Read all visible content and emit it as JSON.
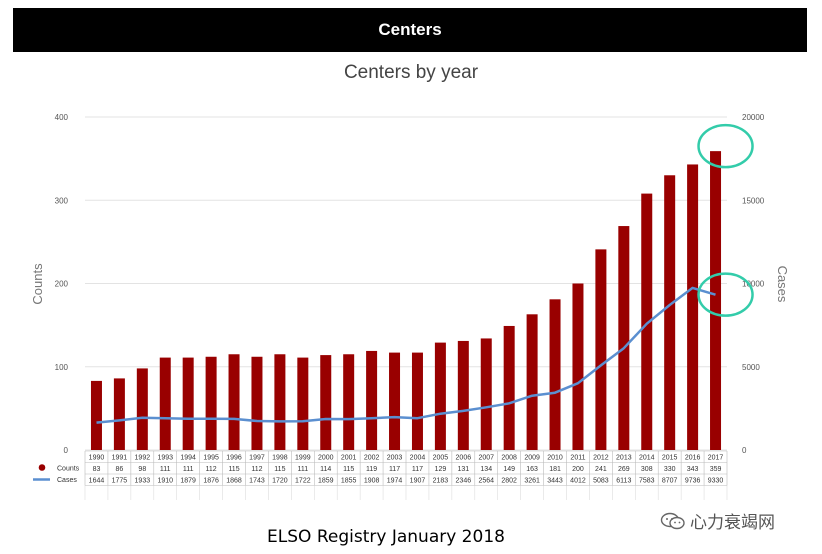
{
  "header": {
    "title": "Centers"
  },
  "footer": {
    "text": "ELSO Registry January  2018"
  },
  "watermark": {
    "text": "心力衰竭网",
    "icon": "wechat-icon"
  },
  "colors": {
    "bar": "#990000",
    "line": "#5b8fd0",
    "highlight": "#33ccaa"
  },
  "chart_data": {
    "type": "bar",
    "title": "Centers by year",
    "ylabel": "Counts",
    "y2label": "Cases",
    "ylim": [
      0,
      400
    ],
    "y2lim": [
      0,
      20000
    ],
    "yticks": [
      "0",
      "100",
      "200",
      "300",
      "400"
    ],
    "y2ticks": [
      "0",
      "5000",
      "10000",
      "15000",
      "20000"
    ],
    "categories": [
      "1990",
      "1991",
      "1992",
      "1993",
      "1994",
      "1995",
      "1996",
      "1997",
      "1998",
      "1999",
      "2000",
      "2001",
      "2002",
      "2003",
      "2004",
      "2005",
      "2006",
      "2007",
      "2008",
      "2009",
      "2010",
      "2011",
      "2012",
      "2013",
      "2014",
      "2015",
      "2016",
      "2017"
    ],
    "series": [
      {
        "name": "Counts",
        "kind": "bar",
        "axis": "left",
        "values": [
          "83",
          "86",
          "98",
          "111",
          "111",
          "112",
          "115",
          "112",
          "115",
          "111",
          "114",
          "115",
          "119",
          "117",
          "117",
          "129",
          "131",
          "134",
          "149",
          "163",
          "181",
          "200",
          "241",
          "269",
          "308",
          "330",
          "343",
          "359"
        ]
      },
      {
        "name": "Cases",
        "kind": "line",
        "axis": "right",
        "values": [
          "1644",
          "1775",
          "1933",
          "1910",
          "1879",
          "1876",
          "1868",
          "1743",
          "1720",
          "1722",
          "1859",
          "1855",
          "1908",
          "1974",
          "1907",
          "2183",
          "2346",
          "2564",
          "2802",
          "3261",
          "3443",
          "4012",
          "5083",
          "6113",
          "7583",
          "8707",
          "9736",
          "9330"
        ]
      }
    ],
    "highlight_points": [
      {
        "series": "Counts",
        "category": "2017"
      },
      {
        "series": "Cases",
        "category": "2017"
      }
    ]
  }
}
